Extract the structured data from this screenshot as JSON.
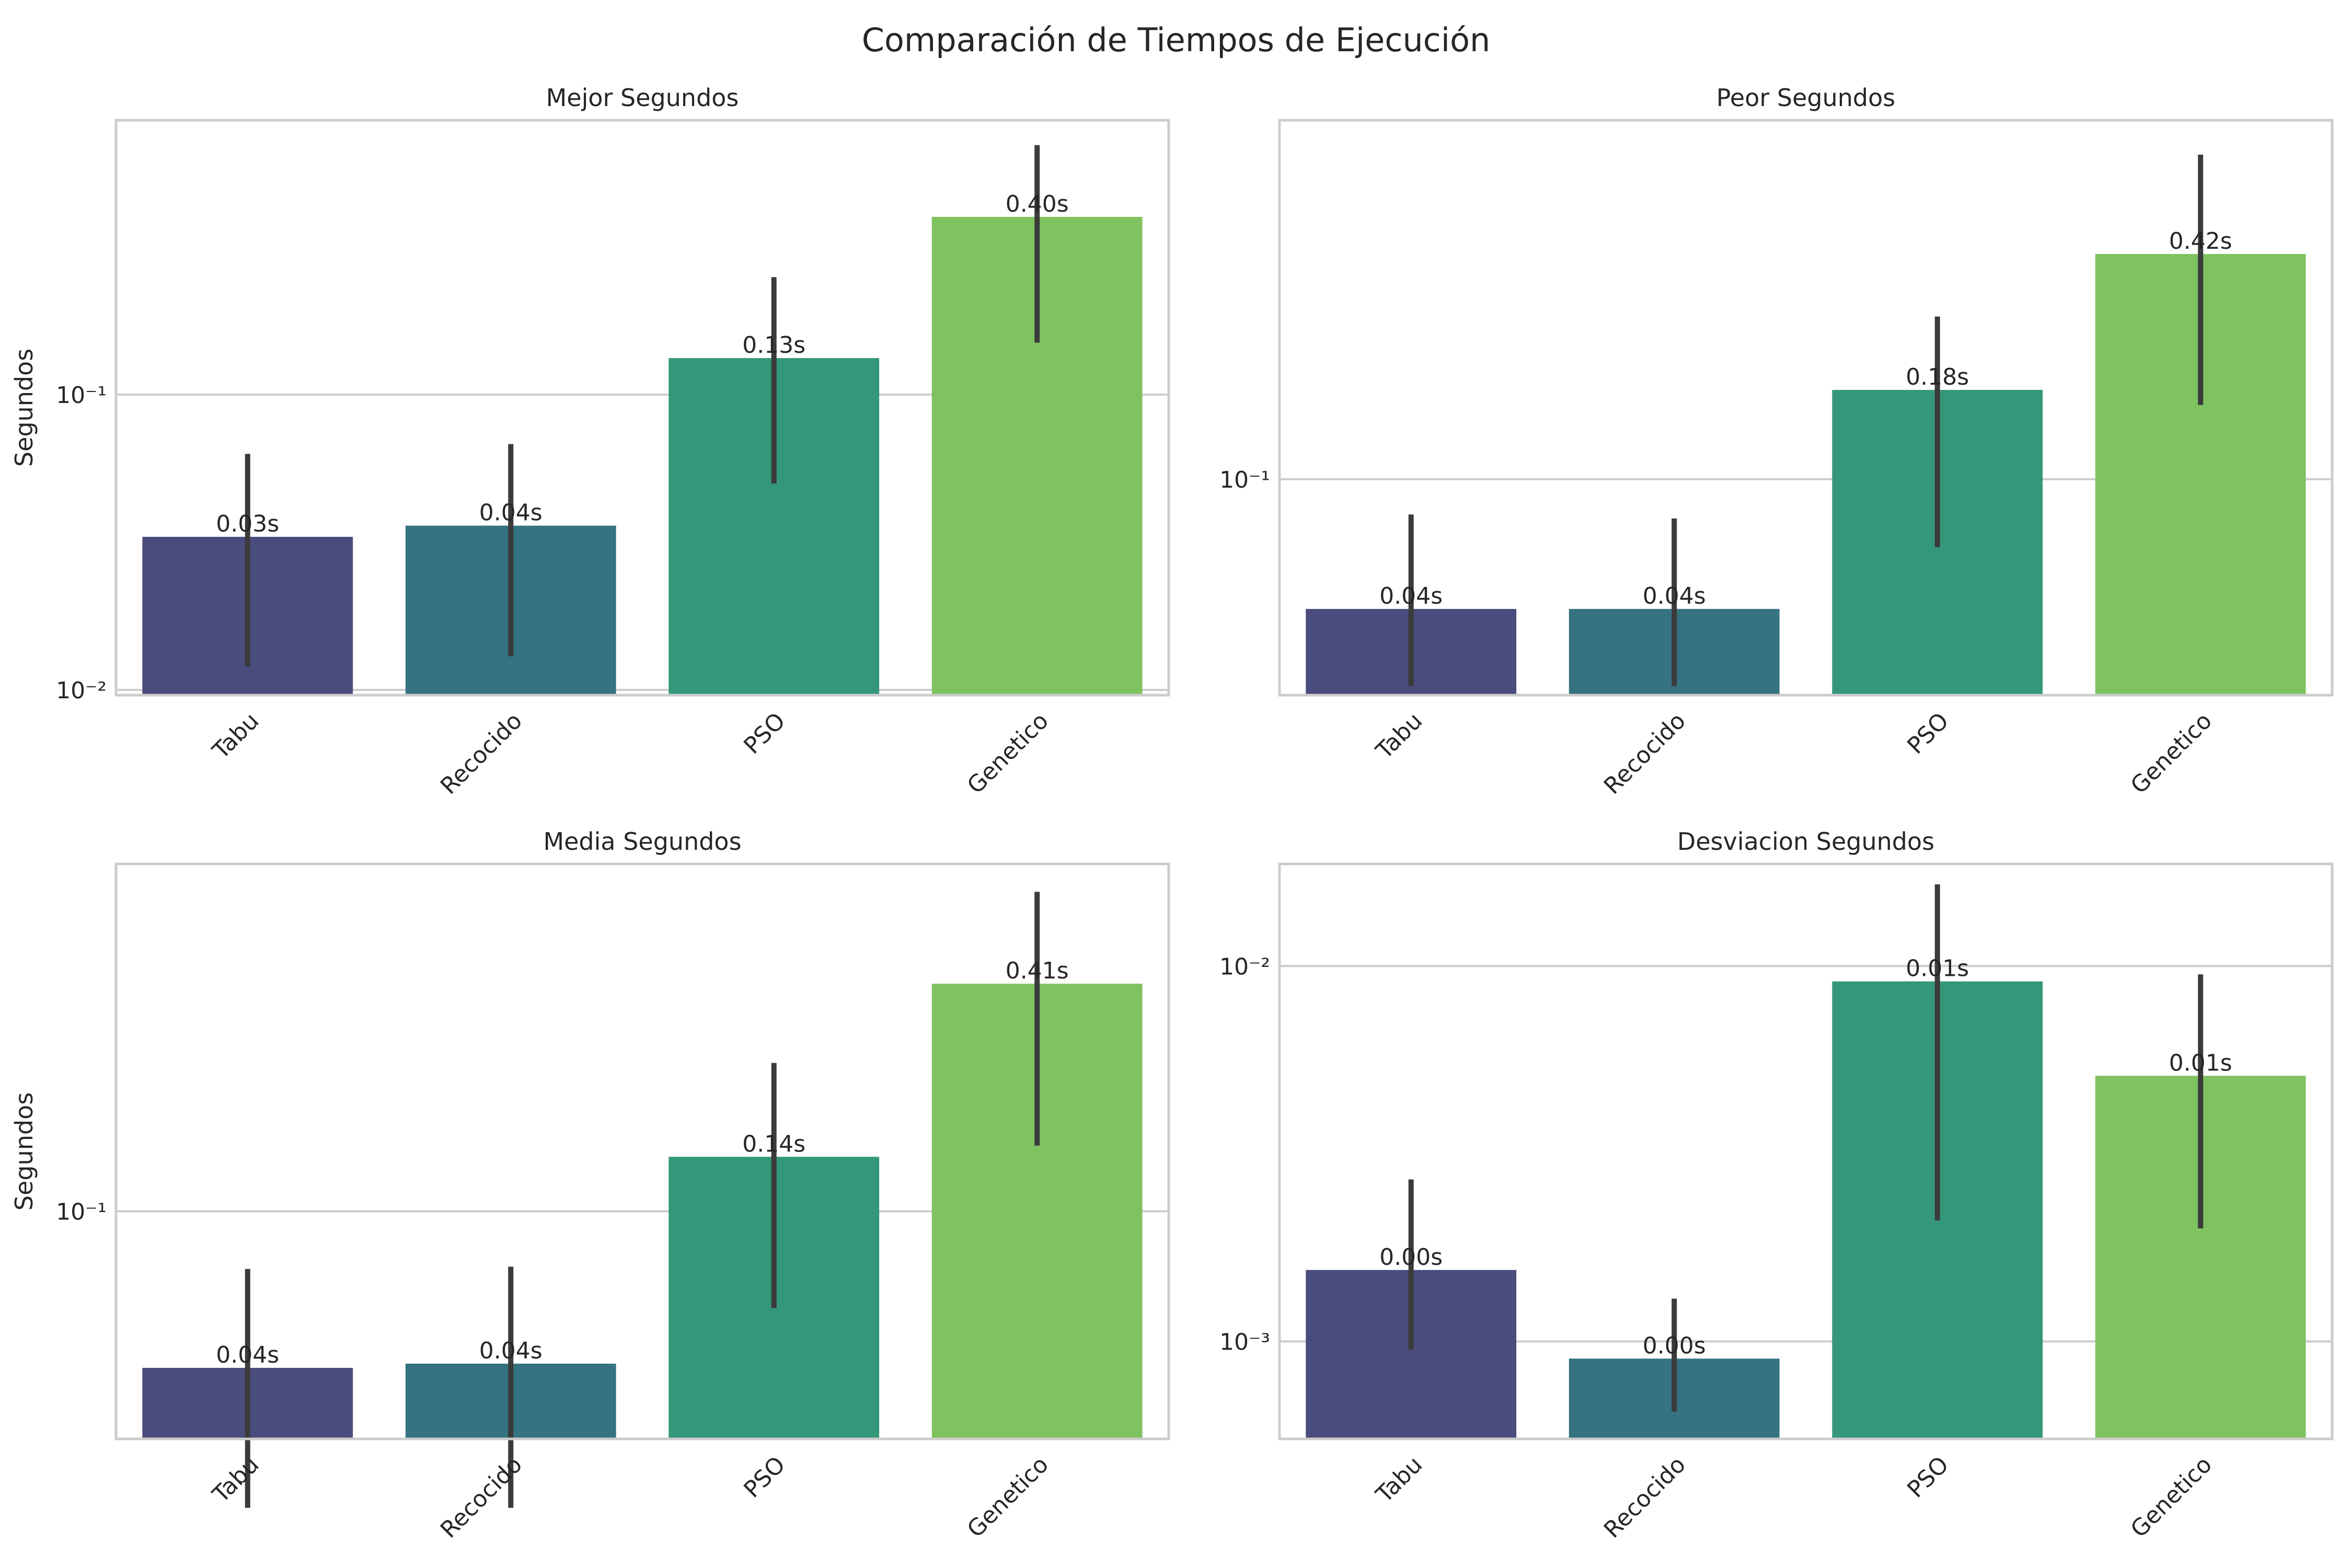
{
  "suptitle": "Comparación de Tiempos de Ejecución",
  "colors": {
    "Tabu": "#4a4c7d",
    "Recocido": "#357380",
    "PSO": "#35977a",
    "Genetico": "#7fc260",
    "error_bar": "#3b3b3b",
    "grid": "#cccccc",
    "frame": "#cccccc"
  },
  "chart_data": [
    {
      "type": "bar",
      "title": "Mejor Segundos",
      "ylabel": "Segundos",
      "yscale": "log",
      "ylim": [
        0.0096,
        0.85
      ],
      "yticks": [
        {
          "value": 0.1,
          "label": "10⁻¹"
        },
        {
          "value": 0.01,
          "label": "10⁻²"
        }
      ],
      "categories": [
        "Tabu",
        "Recocido",
        "PSO",
        "Genetico"
      ],
      "values": [
        0.033,
        0.036,
        0.133,
        0.4
      ],
      "error_low": [
        0.012,
        0.013,
        0.05,
        0.15
      ],
      "error_high": [
        0.063,
        0.068,
        0.25,
        0.7
      ],
      "data_labels": [
        "0.03s",
        "0.04s",
        "0.13s",
        "0.40s"
      ],
      "grid": true
    },
    {
      "type": "bar",
      "title": "Peor Segundos",
      "ylabel": "",
      "yscale": "log",
      "ylim": [
        0.0255,
        0.97
      ],
      "yticks": [
        {
          "value": 0.1,
          "label": "10⁻¹"
        }
      ],
      "categories": [
        "Tabu",
        "Recocido",
        "PSO",
        "Genetico"
      ],
      "values": [
        0.044,
        0.044,
        0.176,
        0.416
      ],
      "error_low": [
        0.027,
        0.027,
        0.065,
        0.16
      ],
      "error_high": [
        0.08,
        0.078,
        0.28,
        0.78
      ],
      "data_labels": [
        "0.04s",
        "0.04s",
        "0.18s",
        "0.42s"
      ],
      "grid": true
    },
    {
      "type": "bar",
      "title": "Media Segundos",
      "ylabel": "Segundos",
      "yscale": "log",
      "ylim": [
        0.0245,
        0.855
      ],
      "yticks": [
        {
          "value": 0.1,
          "label": "10⁻¹"
        }
      ],
      "categories": [
        "Tabu",
        "Recocido",
        "PSO",
        "Genetico"
      ],
      "values": [
        0.038,
        0.039,
        0.14,
        0.408
      ],
      "error_low": [
        0.016,
        0.016,
        0.055,
        0.15
      ],
      "error_high": [
        0.07,
        0.071,
        0.25,
        0.72
      ],
      "data_labels": [
        "0.04s",
        "0.04s",
        "0.14s",
        "0.41s"
      ],
      "grid": true
    },
    {
      "type": "bar",
      "title": "Desviacion Segundos",
      "ylabel": "",
      "yscale": "log",
      "ylim": [
        0.00055,
        0.0187
      ],
      "yticks": [
        {
          "value": 0.01,
          "label": "10⁻²"
        },
        {
          "value": 0.001,
          "label": "10⁻³"
        }
      ],
      "categories": [
        "Tabu",
        "Recocido",
        "PSO",
        "Genetico"
      ],
      "values": [
        0.00155,
        0.0009,
        0.0091,
        0.0051
      ],
      "error_low": [
        0.00095,
        0.00065,
        0.0021,
        0.002
      ],
      "error_high": [
        0.0027,
        0.0013,
        0.0165,
        0.0095
      ],
      "data_labels": [
        "0.00s",
        "0.00s",
        "0.01s",
        "0.01s"
      ],
      "grid": true
    }
  ]
}
